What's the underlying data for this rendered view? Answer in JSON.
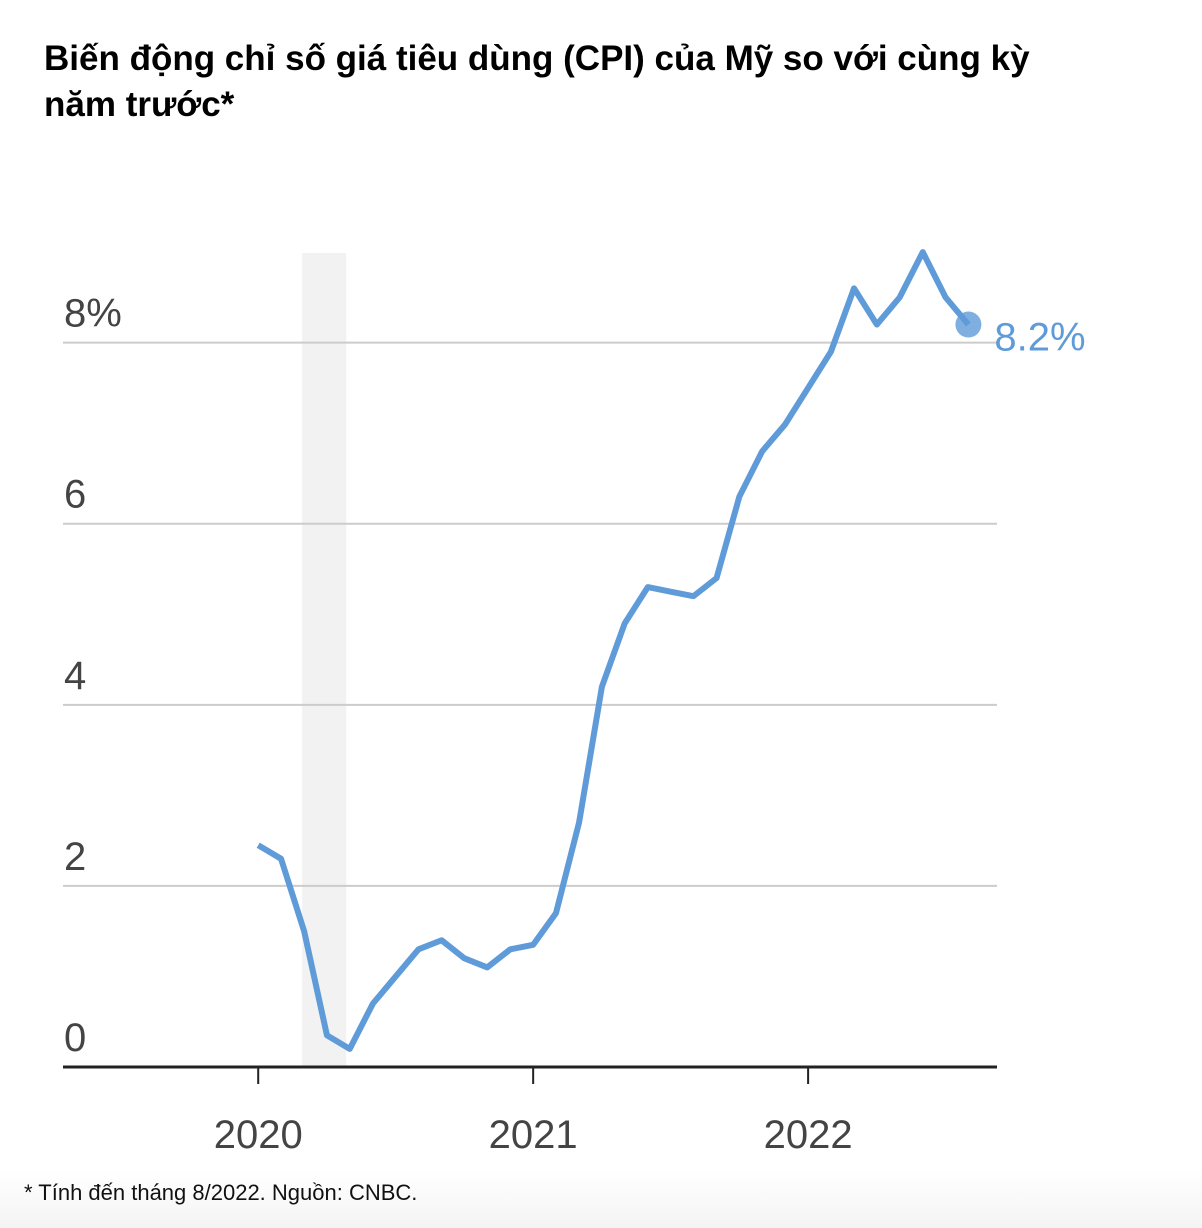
{
  "chart_data": {
    "type": "line",
    "title": "Biến động chỉ số giá tiêu dùng (CPI) của Mỹ so với cùng kỳ năm trước*",
    "footnote": "* Tính đến tháng 8/2022. Nguồn: CNBC.",
    "x": [
      2020,
      2020.083,
      2020.167,
      2020.25,
      2020.333,
      2020.417,
      2020.5,
      2020.583,
      2020.667,
      2020.75,
      2020.833,
      2020.917,
      2021,
      2021.083,
      2021.167,
      2021.25,
      2021.333,
      2021.417,
      2021.5,
      2021.583,
      2021.667,
      2021.75,
      2021.833,
      2021.917,
      2022,
      2022.083,
      2022.167,
      2022.25,
      2022.333,
      2022.417,
      2022.5,
      2022.583
    ],
    "series": [
      {
        "color": "#5f9bd8",
        "values": [
          2.45,
          2.3,
          1.5,
          0.35,
          0.2,
          0.7,
          1.0,
          1.3,
          1.4,
          1.2,
          1.1,
          1.3,
          1.35,
          1.7,
          2.7,
          4.2,
          4.9,
          5.3,
          5.25,
          5.2,
          5.4,
          6.3,
          6.8,
          7.1,
          7.5,
          7.9,
          8.6,
          8.2,
          8.5,
          9.0,
          8.5,
          8.2
        ],
        "value_labels": [
          null,
          null,
          null,
          null,
          null,
          null,
          null,
          null,
          null,
          null,
          null,
          null,
          null,
          null,
          null,
          null,
          null,
          null,
          null,
          null,
          null,
          null,
          null,
          null,
          null,
          null,
          null,
          null,
          null,
          null,
          null,
          "8.2%"
        ]
      }
    ],
    "shaded_range": [
      2020.16,
      2020.32
    ],
    "xlim": [
      2019.29,
      2022.687
    ],
    "xticks": [
      2020,
      2021,
      2022
    ],
    "ylim": [
      0,
      9.2
    ],
    "yticks": [
      0,
      2,
      4,
      6,
      {
        "value": 8,
        "label": "8%"
      }
    ],
    "grid": true
  }
}
